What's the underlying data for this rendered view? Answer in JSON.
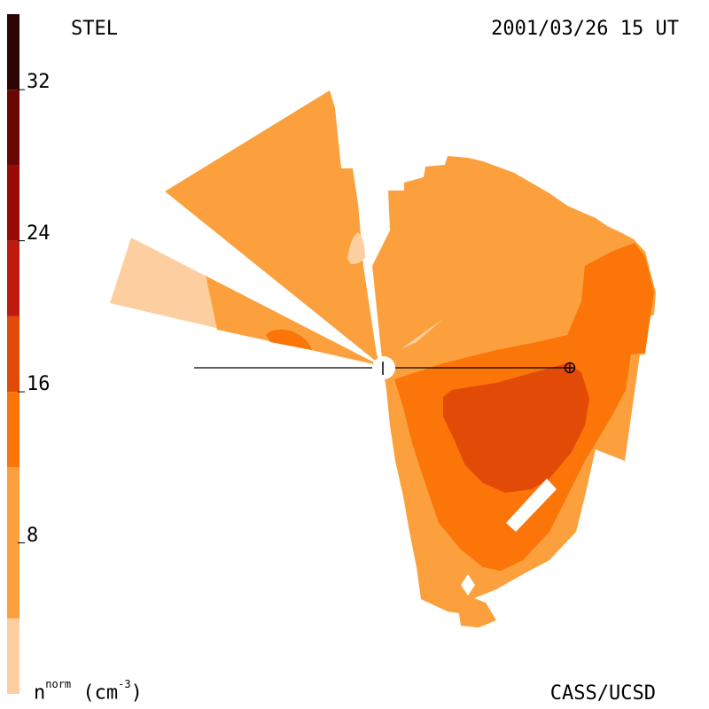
{
  "header": {
    "instrument": "STEL",
    "datetime": "2001/03/26 15 UT"
  },
  "footer": {
    "credit": "CASS/UCSD"
  },
  "colorbar": {
    "label_symbol": "n",
    "label_sup": "norm",
    "label_unit_open": " (cm",
    "label_unit_sup": "-3",
    "label_unit_close": ")",
    "ticks": [
      {
        "value": "32",
        "level": 32
      },
      {
        "value": "24",
        "level": 24
      },
      {
        "value": "16",
        "level": 16
      },
      {
        "value": "8",
        "level": 8
      }
    ],
    "range": [
      0,
      36
    ],
    "bands": [
      {
        "from": 0,
        "to": 4,
        "color": "#fdcfa0"
      },
      {
        "from": 4,
        "to": 12,
        "color": "#fba03c"
      },
      {
        "from": 12,
        "to": 16,
        "color": "#fb7508"
      },
      {
        "from": 16,
        "to": 20,
        "color": "#e24a08"
      },
      {
        "from": 20,
        "to": 24,
        "color": "#c01b10"
      },
      {
        "from": 24,
        "to": 28,
        "color": "#9a0b08"
      },
      {
        "from": 28,
        "to": 32,
        "color": "#6a0606"
      },
      {
        "from": 32,
        "to": 36,
        "color": "#2c0404"
      }
    ]
  },
  "colors": {
    "lightest": "#fdcfa0",
    "light": "#fba03c",
    "medium": "#fb7508",
    "dark": "#e24a08"
  },
  "markers": {
    "sun": "sun-disk-icon",
    "earth": "earth-symbol-icon"
  }
}
